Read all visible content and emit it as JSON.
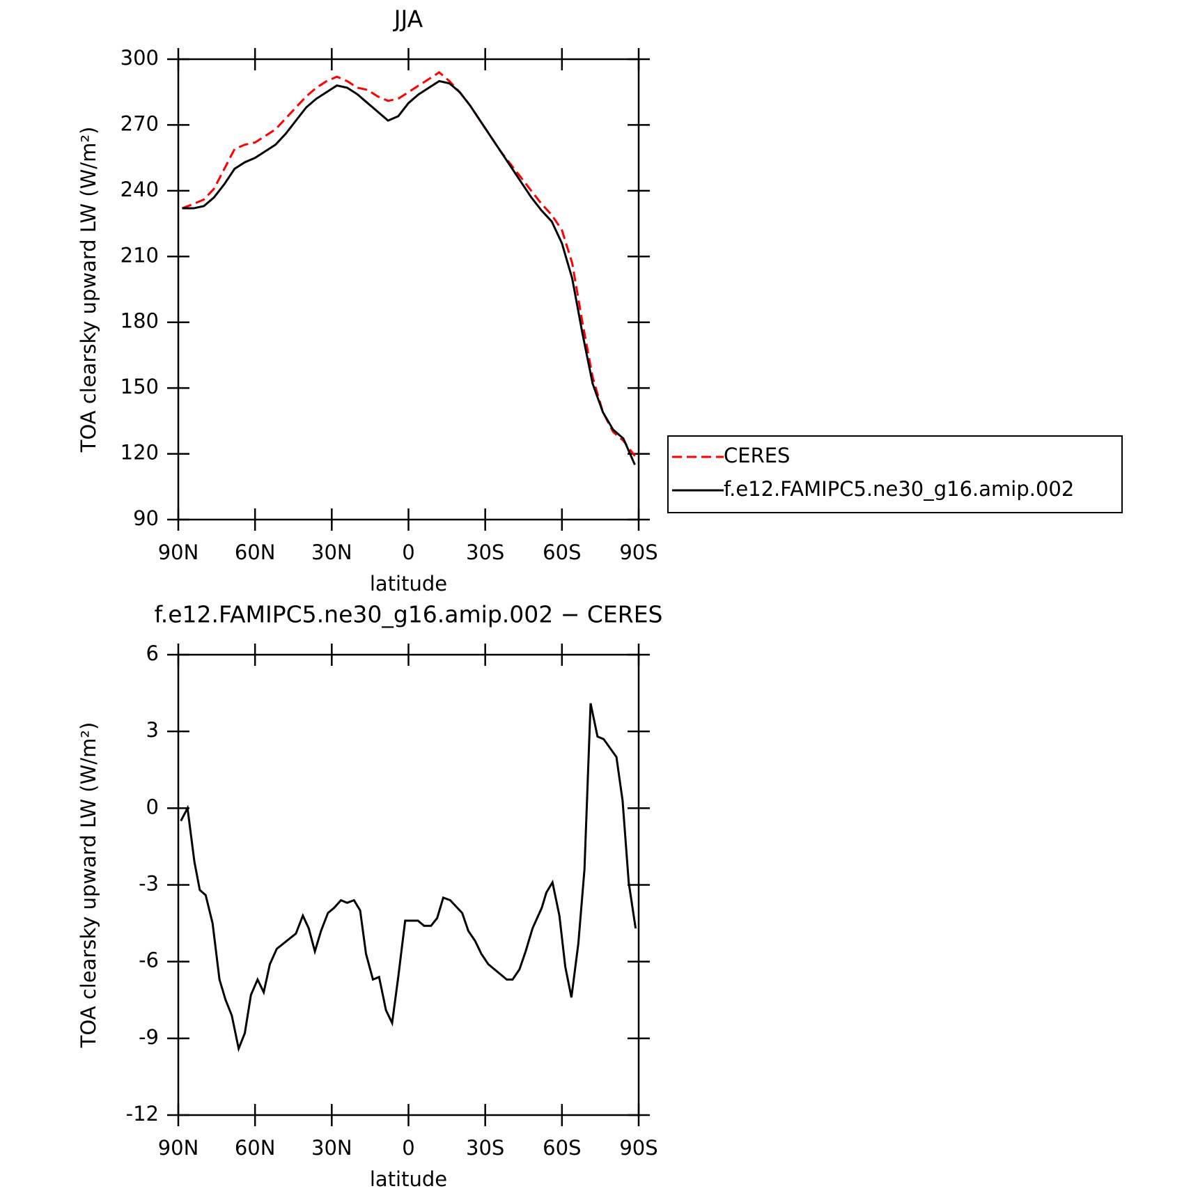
{
  "chart_data": [
    {
      "type": "line",
      "title": "JJA",
      "xlabel": "latitude",
      "ylabel": "TOA clearsky upward LW (W/m²)",
      "x": [
        88.5,
        84,
        80,
        76,
        72,
        68,
        64,
        60,
        56,
        52,
        48,
        44,
        40,
        36,
        32,
        28,
        24,
        20,
        16,
        12,
        8,
        4,
        0,
        -4,
        -8,
        -12,
        -16,
        -20,
        -24,
        -28,
        -32,
        -36,
        -40,
        -44,
        -48,
        -52,
        -56,
        -60,
        -64,
        -68,
        -72,
        -76,
        -80,
        -84,
        -88.5
      ],
      "series": [
        {
          "name": "CERES",
          "color": "#ff0000",
          "linestyle": "dashed",
          "values": [
            232,
            234,
            236,
            241,
            250,
            259,
            261,
            262,
            265,
            268,
            273,
            278,
            283,
            287,
            290,
            292,
            290,
            287,
            286,
            283,
            281,
            282,
            285,
            288,
            291,
            294,
            290,
            285,
            279,
            272,
            265,
            258,
            252,
            246,
            240,
            234,
            229,
            222,
            207,
            180,
            155,
            139,
            130,
            126,
            119
          ]
        },
        {
          "name": "f.e12.FAMIPC5.ne30_g16.amip.002",
          "color": "#000000",
          "linestyle": "solid",
          "values": [
            232,
            232,
            233,
            237,
            243,
            250,
            253,
            255,
            258,
            261,
            266,
            272,
            278,
            282,
            285,
            288,
            287,
            284,
            280,
            276,
            272,
            274,
            280,
            284,
            287,
            290,
            289,
            285,
            279,
            272,
            265,
            258,
            251,
            244,
            237,
            231,
            226,
            216,
            200,
            175,
            152,
            139,
            131,
            127,
            115
          ]
        }
      ],
      "xlim": [
        90,
        -90
      ],
      "xticks": [
        {
          "value": 90,
          "label": "90N"
        },
        {
          "value": 60,
          "label": "60N"
        },
        {
          "value": 30,
          "label": "30N"
        },
        0,
        {
          "value": -30,
          "label": "30S"
        },
        {
          "value": -60,
          "label": "60S"
        },
        {
          "value": -90,
          "label": "90S"
        }
      ],
      "ylim": [
        90,
        300
      ],
      "yticks": [
        90,
        120,
        150,
        180,
        210,
        240,
        270,
        300
      ],
      "legend": "outside-right"
    },
    {
      "type": "line",
      "title": "f.e12.FAMIPC5.ne30_g16.amip.002 − CERES",
      "xlabel": "latitude",
      "ylabel": "TOA clearsky upward LW (W/m²)",
      "x": [
        89,
        86.4,
        83.7,
        81.6,
        79.3,
        76.6,
        73.9,
        71.5,
        69.1,
        66.4,
        64,
        61.6,
        59,
        56.6,
        54.2,
        51.5,
        44,
        41.3,
        39,
        36.6,
        34.2,
        31.5,
        29.1,
        26.4,
        24,
        21.3,
        18.9,
        16.6,
        13.9,
        11.5,
        8.8,
        6.4,
        4,
        1.3,
        -1.1,
        -3.7,
        -6.1,
        -8.8,
        -11.2,
        -13.6,
        -16.3,
        -21,
        -23.4,
        -26.1,
        -28.5,
        -31.2,
        -36,
        -38.4,
        -40.7,
        -43.4,
        -45.8,
        -48.5,
        -52.1,
        -53.9,
        -56.3,
        -59,
        -61.3,
        -63.7,
        -66.4,
        -68.8,
        -71.2,
        -73.9,
        -76.3,
        -81.3,
        -83.7,
        -86.1,
        -88.8
      ],
      "series": [
        {
          "color": "#000000",
          "linestyle": "solid",
          "values": [
            -0.5,
            0,
            -2.1,
            -3.2,
            -3.4,
            -4.5,
            -6.7,
            -7.5,
            -8.1,
            -9.4,
            -8.8,
            -7.3,
            -6.7,
            -7.2,
            -6.1,
            -5.5,
            -4.9,
            -4.2,
            -4.7,
            -5.6,
            -4.8,
            -4.1,
            -3.9,
            -3.6,
            -3.7,
            -3.6,
            -4.0,
            -5.7,
            -6.7,
            -6.6,
            -7.9,
            -8.4,
            -6.6,
            -4.4,
            -4.4,
            -4.4,
            -4.6,
            -4.6,
            -4.3,
            -3.5,
            -3.6,
            -4.1,
            -4.8,
            -5.2,
            -5.7,
            -6.1,
            -6.5,
            -6.7,
            -6.7,
            -6.3,
            -5.6,
            -4.7,
            -3.9,
            -3.3,
            -2.9,
            -4.2,
            -6.2,
            -7.4,
            -5.3,
            -2.4,
            4.1,
            2.8,
            2.7,
            2.0,
            0.3,
            -2.9,
            -4.7
          ]
        }
      ],
      "xlim": [
        90,
        -90
      ],
      "xticks": [
        {
          "value": 90,
          "label": "90N"
        },
        {
          "value": 60,
          "label": "60N"
        },
        {
          "value": 30,
          "label": "30N"
        },
        0,
        {
          "value": -30,
          "label": "30S"
        },
        {
          "value": -60,
          "label": "60S"
        },
        {
          "value": -90,
          "label": "90S"
        }
      ],
      "ylim": [
        -12,
        6
      ],
      "yticks": [
        -12,
        -9,
        -6,
        -3,
        0,
        3,
        6
      ]
    }
  ]
}
